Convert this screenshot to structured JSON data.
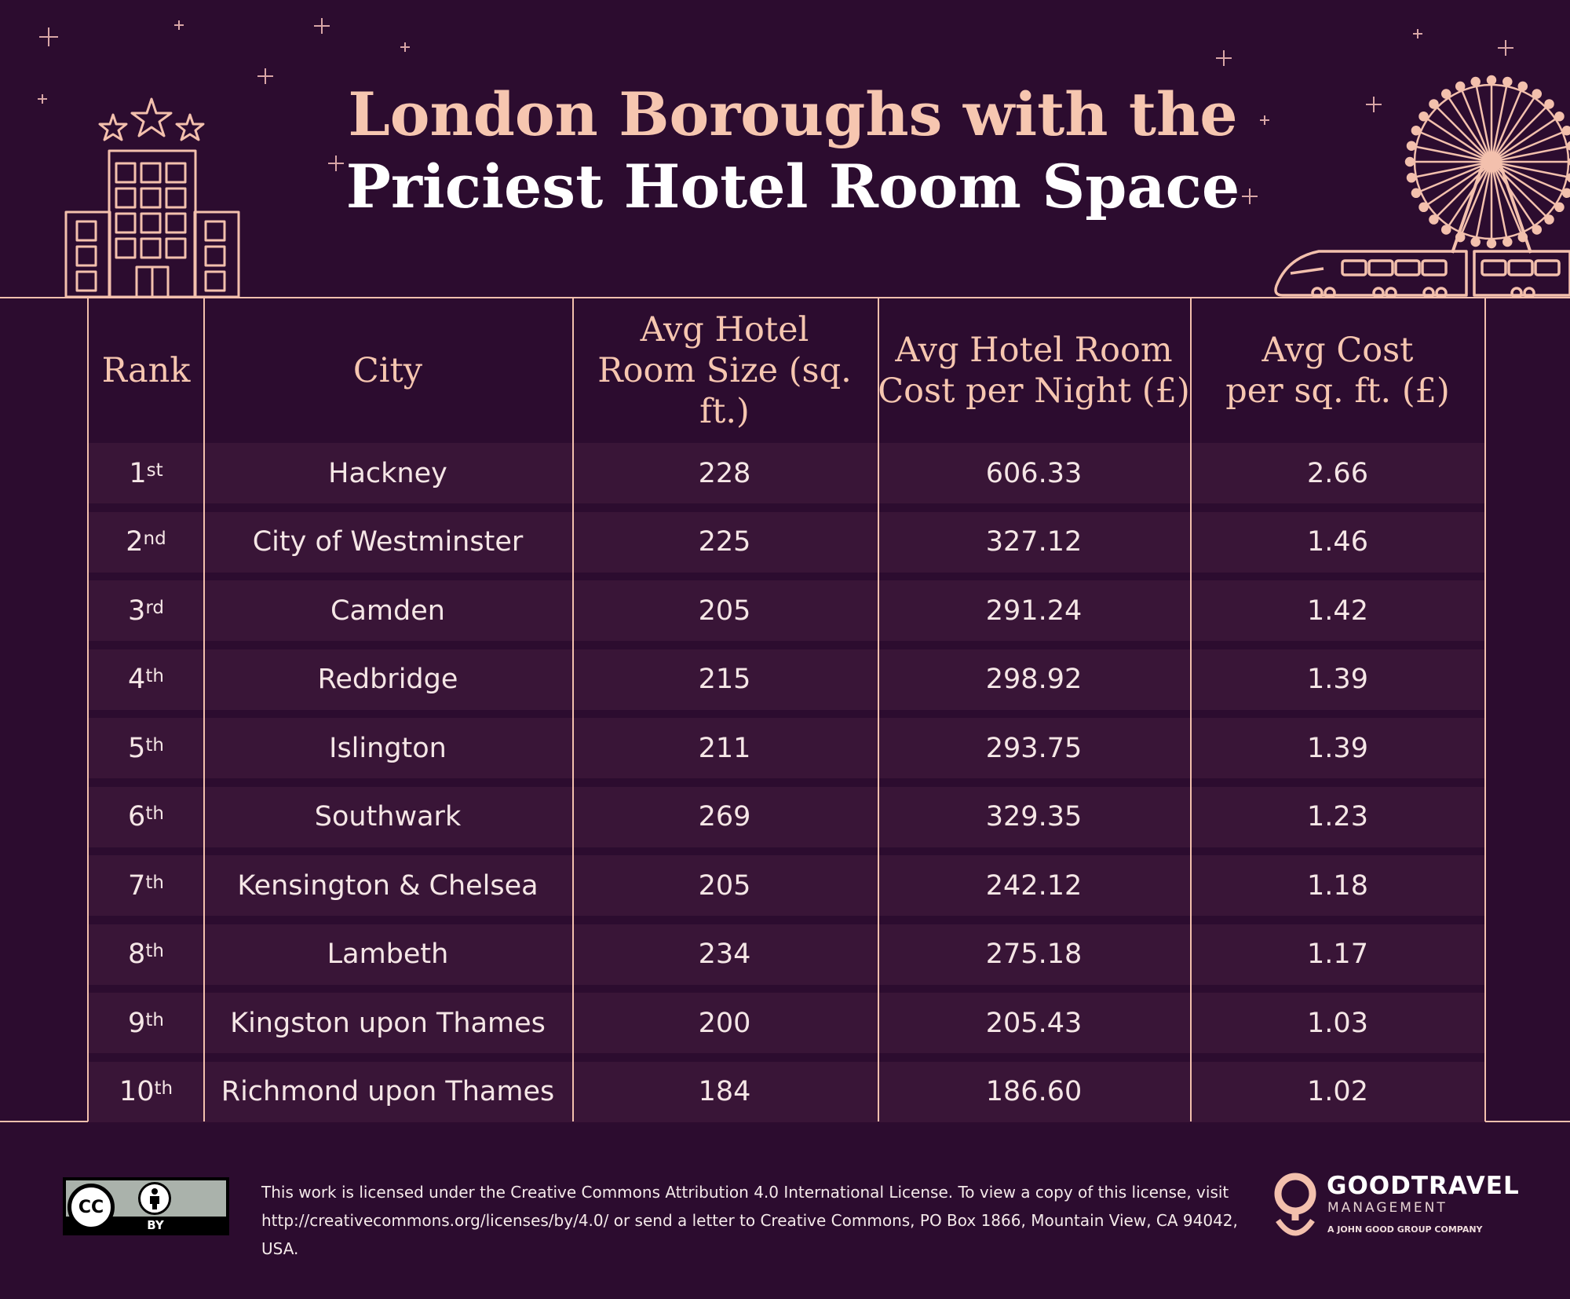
{
  "title": {
    "line1": "London Boroughs with the",
    "line2": "Priciest Hotel Room Space"
  },
  "colors": {
    "background": "#2c0c2f",
    "row_band": "#391537",
    "accent": "#f3c0ad",
    "title_peach": "#f6c6b0"
  },
  "chart_data": {
    "type": "table",
    "columns": [
      "Rank",
      "City",
      "Avg Hotel\nRoom Size (sq. ft.)",
      "Avg Hotel Room\nCost per Night (£)",
      "Avg Cost\nper sq. ft. (£)"
    ],
    "rows": [
      {
        "rank_num": "1",
        "rank_suffix": "st",
        "city": "Hackney",
        "room_size": "228",
        "cost_per_night": "606.33",
        "cost_per_sqft": "2.66"
      },
      {
        "rank_num": "2",
        "rank_suffix": "nd",
        "city": "City of Westminster",
        "room_size": "225",
        "cost_per_night": "327.12",
        "cost_per_sqft": "1.46"
      },
      {
        "rank_num": "3",
        "rank_suffix": "rd",
        "city": "Camden",
        "room_size": "205",
        "cost_per_night": "291.24",
        "cost_per_sqft": "1.42"
      },
      {
        "rank_num": "4",
        "rank_suffix": "th",
        "city": "Redbridge",
        "room_size": "215",
        "cost_per_night": "298.92",
        "cost_per_sqft": "1.39"
      },
      {
        "rank_num": "5",
        "rank_suffix": "th",
        "city": "Islington",
        "room_size": "211",
        "cost_per_night": "293.75",
        "cost_per_sqft": "1.39"
      },
      {
        "rank_num": "6",
        "rank_suffix": "th",
        "city": "Southwark",
        "room_size": "269",
        "cost_per_night": "329.35",
        "cost_per_sqft": "1.23"
      },
      {
        "rank_num": "7",
        "rank_suffix": "th",
        "city": "Kensington & Chelsea",
        "room_size": "205",
        "cost_per_night": "242.12",
        "cost_per_sqft": "1.18"
      },
      {
        "rank_num": "8",
        "rank_suffix": "th",
        "city": "Lambeth",
        "room_size": "234",
        "cost_per_night": "275.18",
        "cost_per_sqft": "1.17"
      },
      {
        "rank_num": "9",
        "rank_suffix": "th",
        "city": "Kingston upon Thames",
        "room_size": "200",
        "cost_per_night": "205.43",
        "cost_per_sqft": "1.03"
      },
      {
        "rank_num": "10",
        "rank_suffix": "th",
        "city": "Richmond upon Thames",
        "room_size": "184",
        "cost_per_night": "186.60",
        "cost_per_sqft": "1.02"
      }
    ]
  },
  "decorations": {
    "left_icon": "hotel-building-icon",
    "right_icon": "ferris-wheel-train-icon",
    "stars": "sparkle-star-icon"
  },
  "footer": {
    "cc_logo_text": "CC",
    "cc_by_label": "BY",
    "license_line1": "This work is licensed under the Creative Commons Attribution 4.0 International License. To view a copy of this license, visit",
    "license_line2": "http://creativecommons.org/licenses/by/4.0/ or send a letter to Creative Commons, PO Box 1866, Mountain View, CA 94042, USA.",
    "brand_name": "GOODTRAVEL",
    "brand_sub": "MANAGEMENT",
    "brand_tag": "A JOHN GOOD GROUP COMPANY"
  }
}
